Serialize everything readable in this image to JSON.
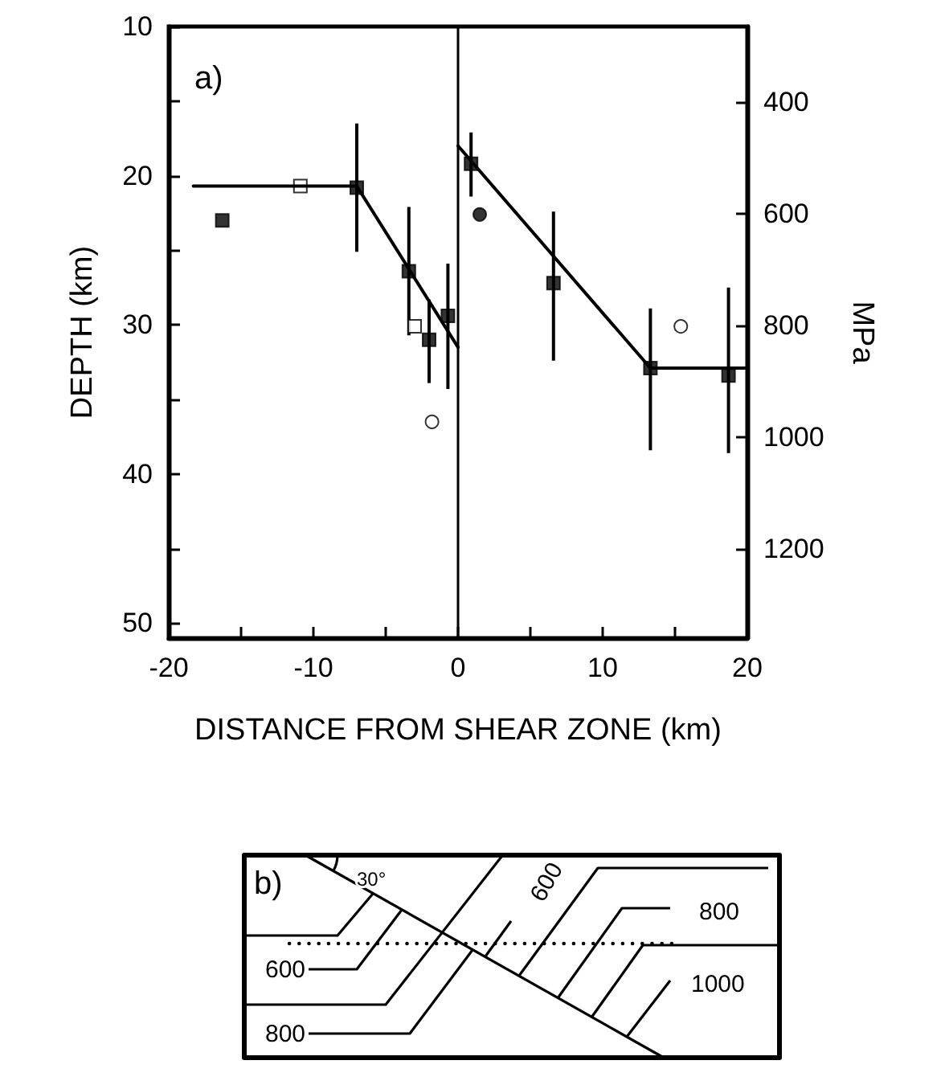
{
  "chart_data": [
    {
      "type": "scatter",
      "title": "a)",
      "xlabel": "DISTANCE FROM SHEAR ZONE (km)",
      "ylabel": "DEPTH (km)",
      "y2label": "MPa",
      "xlim": [
        -20,
        20
      ],
      "xticks": [
        -20,
        {
          "value": -15,
          "label": null
        },
        -10,
        {
          "value": -5,
          "label": null
        },
        0,
        {
          "value": 5,
          "label": null
        },
        10,
        {
          "value": 15,
          "label": null
        },
        20
      ],
      "ylim": [
        51,
        10
      ],
      "yticks": [
        10,
        {
          "value": 15,
          "label": null
        },
        20,
        {
          "value": 25,
          "label": null
        },
        30,
        {
          "value": 35,
          "label": null
        },
        40,
        {
          "value": 45,
          "label": null
        },
        50
      ],
      "y2lim": [
        1360,
        265
      ],
      "y2ticks": [
        400,
        600,
        800,
        1000,
        1200
      ],
      "series": [
        {
          "type": "scatter",
          "marker": "square",
          "color": "#000000",
          "x": [
            -16.3,
            -7.0,
            -3.4,
            -2.0,
            -0.7,
            0.9,
            6.6,
            13.3,
            18.7
          ],
          "values": [
            23.0,
            20.8,
            26.4,
            31.0,
            29.4,
            19.2,
            27.2,
            32.9,
            33.4
          ],
          "errors": [
            null,
            [
              16.5,
              25.1
            ],
            [
              22.1,
              30.7
            ],
            [
              28.3,
              33.9
            ],
            [
              25.9,
              34.3
            ],
            [
              17.1,
              21.4
            ],
            [
              22.4,
              32.4
            ],
            [
              28.9,
              38.4
            ],
            [
              27.5,
              38.6
            ]
          ]
        },
        {
          "type": "scatter",
          "marker": "square",
          "color": "#ffffff",
          "x": [
            -10.9,
            -3.0
          ],
          "values": [
            20.7,
            30.1
          ]
        },
        {
          "type": "scatter",
          "marker": "circle",
          "color": "#000000",
          "x": [
            1.5
          ],
          "values": [
            22.6
          ]
        },
        {
          "type": "scatter",
          "marker": "circle",
          "color": "#ffffff",
          "x": [
            -1.8,
            15.4
          ],
          "values": [
            36.5,
            30.1
          ]
        },
        {
          "type": "line",
          "marker": "none",
          "color": "#000000",
          "x": [
            -18.3,
            -7.0,
            0
          ],
          "values": [
            20.7,
            20.7,
            31.5
          ]
        },
        {
          "type": "line",
          "marker": "none",
          "color": "#000000",
          "x": [
            0,
            13.3,
            20
          ],
          "values": [
            18.0,
            32.9,
            32.9
          ]
        }
      ],
      "ref_lines": [
        {
          "axis": "x",
          "value": 0,
          "color": "#000000"
        }
      ]
    },
    {
      "type": "other",
      "title": "b)",
      "annotations": [
        "30°",
        "600",
        "800",
        "600",
        "800",
        "1000"
      ]
    }
  ]
}
